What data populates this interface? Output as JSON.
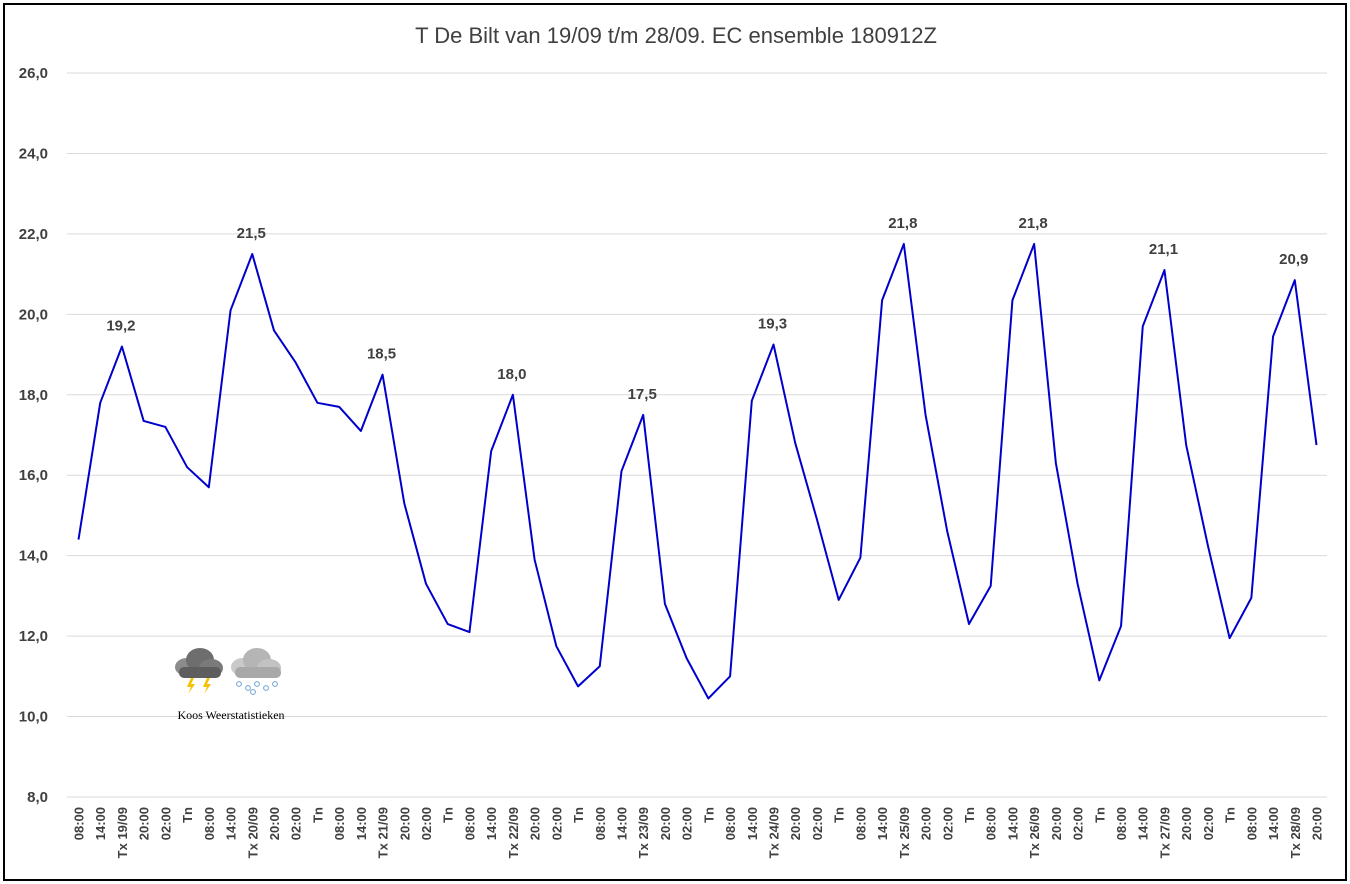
{
  "chart_data": {
    "type": "line",
    "title": "T De Bilt van 19/09 t/m 28/09. EC ensemble 180912Z",
    "xlabel": "",
    "ylabel": "",
    "ylim": [
      8.0,
      26.0
    ],
    "yticks": [
      "8,0",
      "10,0",
      "12,0",
      "14,0",
      "16,0",
      "18,0",
      "20,0",
      "22,0",
      "24,0",
      "26,0"
    ],
    "grid": true,
    "legend": "none",
    "line_color": "#0000cc",
    "x": [
      "08:00",
      "14:00",
      "Tx 19/09",
      "20:00",
      "02:00",
      "Tn",
      "08:00",
      "14:00",
      "Tx 20/09",
      "20:00",
      "02:00",
      "Tn",
      "08:00",
      "14:00",
      "Tx 21/09",
      "20:00",
      "02:00",
      "Tn",
      "08:00",
      "14:00",
      "Tx 22/09",
      "20:00",
      "02:00",
      "Tn",
      "08:00",
      "14:00",
      "Tx 23/09",
      "20:00",
      "02:00",
      "Tn",
      "08:00",
      "14:00",
      "Tx 24/09",
      "20:00",
      "02:00",
      "Tn",
      "08:00",
      "14:00",
      "Tx 25/09",
      "20:00",
      "02:00",
      "Tn",
      "08:00",
      "14:00",
      "Tx 26/09",
      "20:00",
      "02:00",
      "Tn",
      "08:00",
      "14:00",
      "Tx 27/09",
      "20:00",
      "02:00",
      "Tn",
      "08:00",
      "14:00",
      "Tx 28/09",
      "20:00"
    ],
    "values": [
      14.4,
      17.8,
      19.2,
      17.35,
      17.2,
      16.2,
      15.7,
      20.1,
      21.5,
      19.6,
      18.8,
      17.8,
      17.7,
      17.1,
      18.5,
      15.3,
      13.3,
      12.3,
      12.1,
      16.6,
      18.0,
      13.9,
      11.75,
      10.75,
      11.25,
      16.1,
      17.5,
      12.8,
      11.45,
      10.45,
      11.0,
      17.85,
      19.25,
      16.8,
      14.9,
      12.9,
      13.95,
      20.35,
      21.75,
      17.5,
      14.6,
      12.3,
      13.25,
      20.35,
      21.75,
      16.3,
      13.3,
      10.9,
      12.25,
      19.7,
      21.1,
      16.75,
      14.25,
      11.95,
      12.95,
      19.45,
      20.85,
      16.75
    ],
    "data_labels": [
      {
        "index": 2,
        "text": "19,2"
      },
      {
        "index": 8,
        "text": "21,5"
      },
      {
        "index": 14,
        "text": "18,5"
      },
      {
        "index": 20,
        "text": "18,0"
      },
      {
        "index": 26,
        "text": "17,5"
      },
      {
        "index": 32,
        "text": "19,3"
      },
      {
        "index": 38,
        "text": "21,8"
      },
      {
        "index": 44,
        "text": "21,8"
      },
      {
        "index": 50,
        "text": "21,1"
      },
      {
        "index": 56,
        "text": "20,9"
      }
    ]
  },
  "watermark": {
    "text": "Koos Weerstatistieken",
    "icons": [
      "thunderstorm-cloud-icon",
      "hail-cloud-icon"
    ]
  }
}
